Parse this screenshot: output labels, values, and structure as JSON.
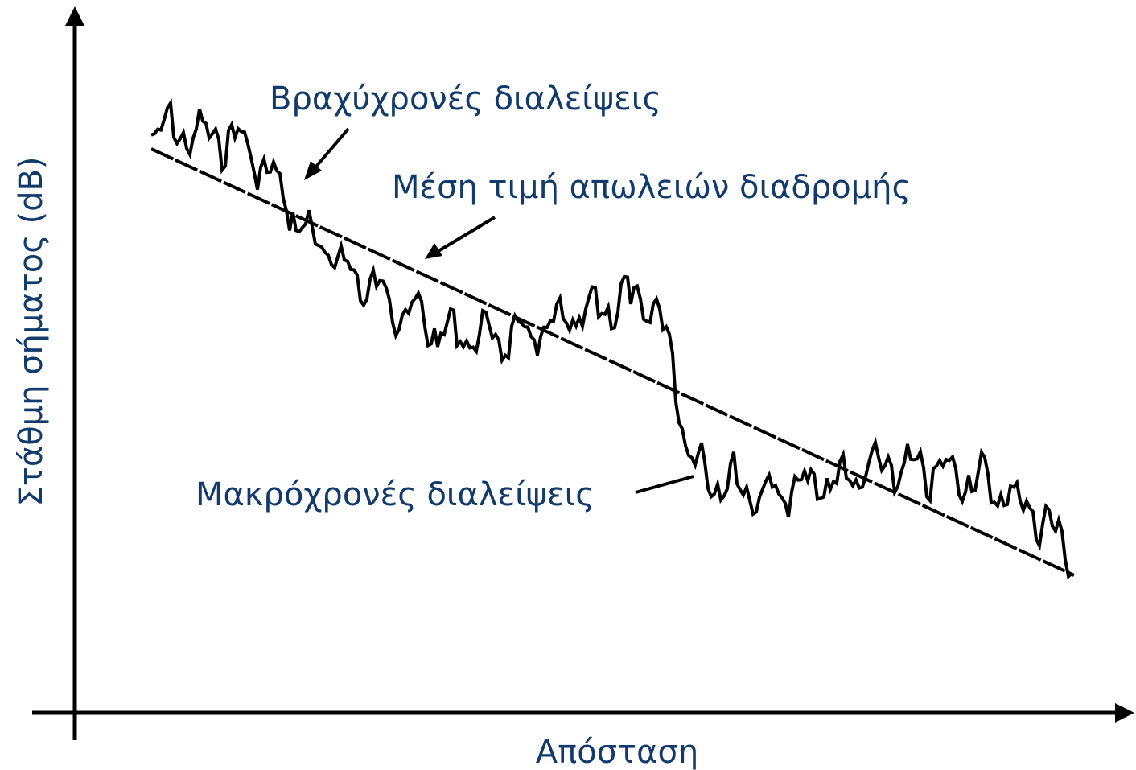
{
  "x_axis_label": "Απόσταση",
  "y_axis_label": "Στάθμη σήματος (dB)",
  "annotations": [
    "Βραχύχρονές διαλείψεις",
    "Μέση τιμή απωλειών διαδρομής",
    "Μακρόχρονές διαλείψεις"
  ]
}
